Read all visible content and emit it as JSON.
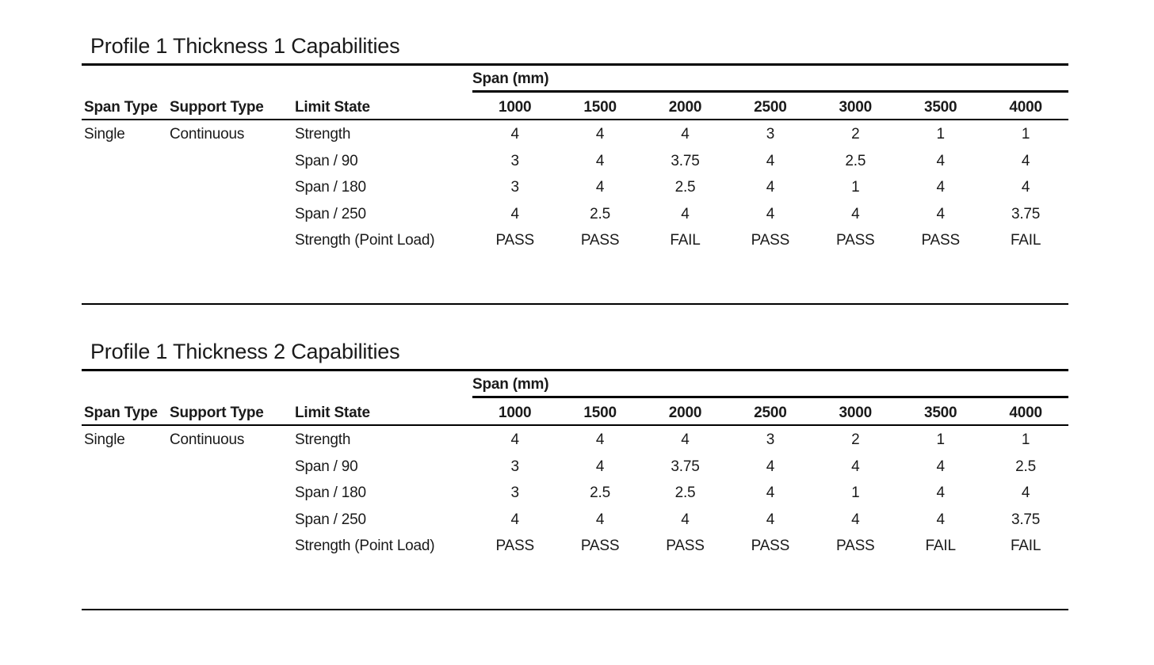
{
  "page": {
    "background_color": "#ffffff",
    "text_color": "#1a1a1a",
    "rule_color": "#000000"
  },
  "tables": [
    {
      "title": "Profile 1 Thickness 1 Capabilities",
      "span_group_header": "Span (mm)",
      "columns": [
        "Span Type",
        "Support Type",
        "Limit State"
      ],
      "span_columns": [
        "1000",
        "1500",
        "2000",
        "2500",
        "3000",
        "3500",
        "4000"
      ],
      "span_type": "Single",
      "support_type": "Continuous",
      "rows": [
        {
          "limit_state": "Strength",
          "values": [
            "4",
            "4",
            "4",
            "3",
            "2",
            "1",
            "1"
          ]
        },
        {
          "limit_state": "Span / 90",
          "values": [
            "3",
            "4",
            "3.75",
            "4",
            "2.5",
            "4",
            "4"
          ]
        },
        {
          "limit_state": "Span / 180",
          "values": [
            "3",
            "4",
            "2.5",
            "4",
            "1",
            "4",
            "4"
          ]
        },
        {
          "limit_state": "Span / 250",
          "values": [
            "4",
            "2.5",
            "4",
            "4",
            "4",
            "4",
            "3.75"
          ]
        },
        {
          "limit_state": "Strength (Point Load)",
          "values": [
            "PASS",
            "PASS",
            "FAIL",
            "PASS",
            "PASS",
            "PASS",
            "FAIL"
          ]
        }
      ]
    },
    {
      "title": "Profile 1 Thickness 2 Capabilities",
      "span_group_header": "Span (mm)",
      "columns": [
        "Span Type",
        "Support Type",
        "Limit State"
      ],
      "span_columns": [
        "1000",
        "1500",
        "2000",
        "2500",
        "3000",
        "3500",
        "4000"
      ],
      "span_type": "Single",
      "support_type": "Continuous",
      "rows": [
        {
          "limit_state": "Strength",
          "values": [
            "4",
            "4",
            "4",
            "3",
            "2",
            "1",
            "1"
          ]
        },
        {
          "limit_state": "Span / 90",
          "values": [
            "3",
            "4",
            "3.75",
            "4",
            "4",
            "4",
            "2.5"
          ]
        },
        {
          "limit_state": "Span / 180",
          "values": [
            "3",
            "2.5",
            "2.5",
            "4",
            "1",
            "4",
            "4"
          ]
        },
        {
          "limit_state": "Span / 250",
          "values": [
            "4",
            "4",
            "4",
            "4",
            "4",
            "4",
            "3.75"
          ]
        },
        {
          "limit_state": "Strength (Point Load)",
          "values": [
            "PASS",
            "PASS",
            "PASS",
            "PASS",
            "PASS",
            "FAIL",
            "FAIL"
          ]
        }
      ]
    }
  ]
}
